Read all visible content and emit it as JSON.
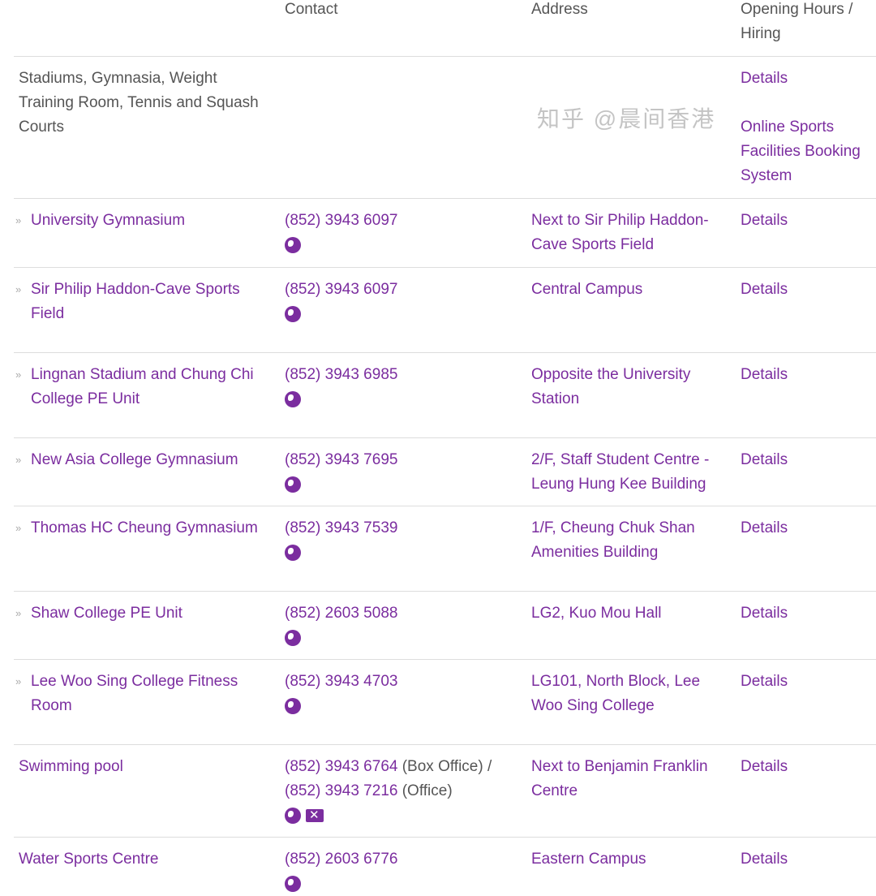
{
  "headers": {
    "name": "",
    "contact": "Contact",
    "address": "Address",
    "hours": "Opening Hours / Hiring"
  },
  "category": {
    "name": "Stadiums, Gymnasia, Weight Training Room, Tennis and Squash Courts",
    "details": "Details",
    "booking": "Online Sports Facilities Booking System"
  },
  "rows": [
    {
      "name": "University Gymnasium",
      "contact": "(852) 3943 6097",
      "address": "Next to Sir Philip Haddon-Cave Sports Field",
      "details": "Details"
    },
    {
      "name": "Sir Philip Haddon-Cave Sports Field",
      "contact": "(852) 3943 6097",
      "address": "Central Campus",
      "details": "Details"
    },
    {
      "name": "Lingnan Stadium and Chung Chi College PE Unit",
      "contact": "(852) 3943 6985",
      "address": "Opposite the University Station",
      "details": "Details"
    },
    {
      "name": "New Asia College Gymnasium",
      "contact": "(852) 3943 7695",
      "address": "2/F, Staff Student Centre - Leung Hung Kee Building",
      "details": "Details"
    },
    {
      "name": "Thomas HC Cheung Gymnasium",
      "contact": "(852) 3943 7539",
      "address": "1/F, Cheung Chuk Shan Amenities Building",
      "details": "Details"
    },
    {
      "name": "Shaw College PE Unit",
      "contact": "(852) 2603 5088",
      "address": "LG2, Kuo Mou Hall",
      "details": "Details"
    },
    {
      "name": "Lee Woo Sing College Fitness Room",
      "contact": "(852) 3943 4703",
      "address": "LG101, North Block, Lee Woo Sing College",
      "details": "Details"
    }
  ],
  "pool": {
    "name": "Swimming pool",
    "phone1": "(852) 3943 6764",
    "label1": " (Box Office) /",
    "phone2": "(852) 3943 7216",
    "label2": " (Office)",
    "address": "Next to Benjamin Franklin Centre",
    "details": "Details"
  },
  "water": {
    "name": "Water Sports Centre",
    "contact": "(852) 2603 6776",
    "address": "Eastern Campus",
    "details": "Details"
  },
  "watermark": "知乎 @晨间香港",
  "colors": {
    "link": "#7b2d9f",
    "text": "#555555",
    "divider": "#dddddd"
  }
}
